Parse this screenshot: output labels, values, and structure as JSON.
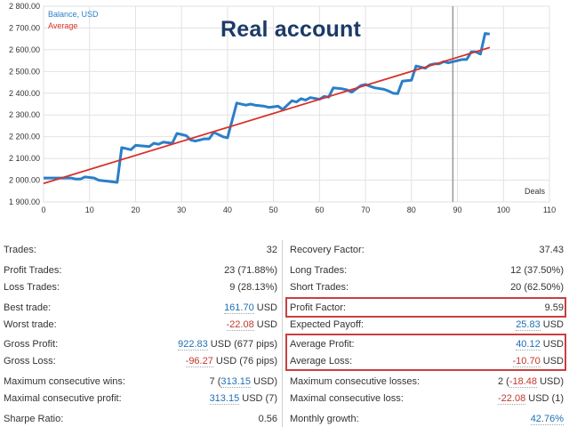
{
  "chart": {
    "title": "Real account",
    "legend": {
      "balance": "Balance, USD",
      "average": "Average"
    },
    "x_axis_label": "Deals",
    "colors": {
      "balance": "#2a7fc9",
      "average": "#d9302a",
      "marker": "#9a9a9a",
      "grid": "#e2e2e2"
    }
  },
  "chart_data": {
    "type": "line",
    "title": "Real account",
    "xlabel": "Deals",
    "ylabel": "",
    "xlim": [
      0,
      110
    ],
    "ylim": [
      1900,
      2800
    ],
    "x_ticks": [
      0,
      10,
      20,
      30,
      40,
      50,
      60,
      70,
      80,
      90,
      100,
      110
    ],
    "y_ticks": [
      "1 900.00",
      "2 000.00",
      "2 100.00",
      "2 200.00",
      "2 300.00",
      "2 400.00",
      "2 500.00",
      "2 600.00",
      "2 700.00",
      "2 800.00"
    ],
    "grid": true,
    "legend_position": "top-left",
    "vertical_marker_x": 89,
    "series": [
      {
        "name": "Balance, USD",
        "points": [
          [
            0,
            2010
          ],
          [
            6,
            2010
          ],
          [
            7,
            2005
          ],
          [
            8,
            2005
          ],
          [
            9,
            2015
          ],
          [
            11,
            2010
          ],
          [
            12,
            2000
          ],
          [
            14,
            1995
          ],
          [
            16,
            1990
          ],
          [
            17,
            2150
          ],
          [
            18,
            2145
          ],
          [
            19,
            2140
          ],
          [
            20,
            2160
          ],
          [
            23,
            2155
          ],
          [
            24,
            2170
          ],
          [
            25,
            2165
          ],
          [
            26,
            2175
          ],
          [
            28,
            2170
          ],
          [
            29,
            2215
          ],
          [
            31,
            2205
          ],
          [
            32,
            2185
          ],
          [
            33,
            2180
          ],
          [
            35,
            2190
          ],
          [
            36,
            2190
          ],
          [
            37,
            2220
          ],
          [
            38,
            2210
          ],
          [
            39,
            2200
          ],
          [
            40,
            2195
          ],
          [
            42,
            2355
          ],
          [
            44,
            2345
          ],
          [
            45,
            2350
          ],
          [
            46,
            2345
          ],
          [
            48,
            2340
          ],
          [
            49,
            2335
          ],
          [
            51,
            2340
          ],
          [
            52,
            2325
          ],
          [
            54,
            2365
          ],
          [
            55,
            2360
          ],
          [
            56,
            2375
          ],
          [
            57,
            2368
          ],
          [
            58,
            2380
          ],
          [
            60,
            2372
          ],
          [
            61,
            2385
          ],
          [
            62,
            2382
          ],
          [
            63,
            2425
          ],
          [
            65,
            2420
          ],
          [
            66,
            2415
          ],
          [
            67,
            2405
          ],
          [
            69,
            2435
          ],
          [
            70,
            2440
          ],
          [
            71,
            2432
          ],
          [
            72,
            2425
          ],
          [
            74,
            2418
          ],
          [
            75,
            2410
          ],
          [
            76,
            2400
          ],
          [
            77,
            2398
          ],
          [
            78,
            2455
          ],
          [
            80,
            2460
          ],
          [
            81,
            2525
          ],
          [
            82,
            2520
          ],
          [
            83,
            2515
          ],
          [
            84,
            2530
          ],
          [
            85,
            2535
          ],
          [
            86,
            2535
          ],
          [
            87,
            2545
          ],
          [
            88,
            2540
          ],
          [
            89,
            2545
          ],
          [
            91,
            2555
          ],
          [
            92,
            2555
          ],
          [
            93,
            2590
          ],
          [
            94,
            2590
          ],
          [
            95,
            2580
          ],
          [
            96,
            2675
          ],
          [
            97,
            2672
          ]
        ]
      },
      {
        "name": "Average",
        "points": [
          [
            0,
            1985
          ],
          [
            97,
            2610
          ]
        ]
      }
    ]
  },
  "stats": {
    "left": [
      {
        "label": "Trades:",
        "value": "32"
      },
      {
        "label": "Profit Trades:",
        "value": "23 (71.88%)"
      },
      {
        "label": "Loss Trades:",
        "value": "9 (28.13%)"
      },
      {
        "label": "Best trade:",
        "value_main": "161.70",
        "value_unit": " USD",
        "color": "blue"
      },
      {
        "label": "Worst trade:",
        "value_main": "-22.08",
        "value_unit": " USD",
        "color": "red"
      },
      {
        "label": "Gross Profit:",
        "value_main": "922.83",
        "value_unit": " USD (677 pips)",
        "color": "blue"
      },
      {
        "label": "Gross Loss:",
        "value_main": "-96.27",
        "value_unit": " USD (76 pips)",
        "color": "red"
      },
      {
        "label": "Maximum consecutive wins:",
        "value_pre": "7 (",
        "value_main": "313.15",
        "value_unit": " USD)",
        "color": "blue"
      },
      {
        "label": "Maximal consecutive profit:",
        "value_main": "313.15",
        "value_unit": " USD (7)",
        "color": "blue"
      },
      {
        "label": "Sharpe Ratio:",
        "value": "0.56"
      }
    ],
    "right": [
      {
        "label": "Recovery Factor:",
        "value": "37.43"
      },
      {
        "label": "Long Trades:",
        "value": "12 (37.50%)"
      },
      {
        "label": "Short Trades:",
        "value": "20 (62.50%)"
      },
      {
        "label": "Profit Factor:",
        "value": "9.59"
      },
      {
        "label": "Expected Payoff:",
        "value_main": "25.83",
        "value_unit": " USD",
        "color": "blue"
      },
      {
        "label": "Average Profit:",
        "value_main": "40.12",
        "value_unit": " USD",
        "color": "blue"
      },
      {
        "label": "Average Loss:",
        "value_main": "-10.70",
        "value_unit": " USD",
        "color": "red"
      },
      {
        "label": "Maximum consecutive losses:",
        "value_pre": "2 (",
        "value_main": "-18.48",
        "value_unit": " USD)",
        "color": "red"
      },
      {
        "label": "Maximal consecutive loss:",
        "value_main": "-22.08",
        "value_unit": " USD (1)",
        "color": "red"
      },
      {
        "label": "Monthly growth:",
        "value_main": "42.76%",
        "value_unit": "",
        "color": "blue"
      }
    ],
    "highlight_color": "#c94040"
  }
}
